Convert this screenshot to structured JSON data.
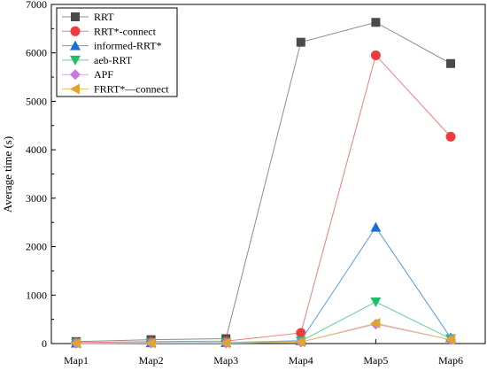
{
  "chart_data": {
    "type": "line",
    "title": "",
    "xlabel": "",
    "ylabel": "Average time (s)",
    "ylim": [
      0,
      7000
    ],
    "yticks": [
      0,
      1000,
      2000,
      3000,
      4000,
      5000,
      6000,
      7000
    ],
    "categories": [
      "Map1",
      "Map2",
      "Map3",
      "Map4",
      "Map5",
      "Map6"
    ],
    "grid": false,
    "legend_position": "top-left",
    "series": [
      {
        "name": "RRT",
        "marker": "square",
        "color": "#4a4a4a",
        "line_color": "#8c8c8c",
        "values": [
          40,
          80,
          100,
          6220,
          6630,
          5780
        ]
      },
      {
        "name": "RRT*-connect",
        "marker": "circle",
        "color": "#ef3b3b",
        "line_color": "#f07b7b",
        "values": [
          20,
          40,
          50,
          220,
          5950,
          4270
        ]
      },
      {
        "name": "informed-RRT*",
        "marker": "triangle-up",
        "color": "#1a6fd6",
        "line_color": "#5a9ae6",
        "values": [
          10,
          15,
          20,
          60,
          2400,
          120
        ]
      },
      {
        "name": "aeb-RRT",
        "marker": "triangle-down",
        "color": "#1fbf6a",
        "line_color": "#62d095",
        "values": [
          8,
          12,
          15,
          50,
          860,
          100
        ]
      },
      {
        "name": "APF",
        "marker": "diamond",
        "color": "#c67ae0",
        "line_color": "#d9a4ec",
        "values": [
          5,
          8,
          10,
          30,
          400,
          80
        ]
      },
      {
        "name": "FRRT*—connect",
        "marker": "triangle-left",
        "color": "#e0a52a",
        "line_color": "#e8c06a",
        "values": [
          5,
          8,
          10,
          30,
          420,
          80
        ]
      }
    ]
  }
}
